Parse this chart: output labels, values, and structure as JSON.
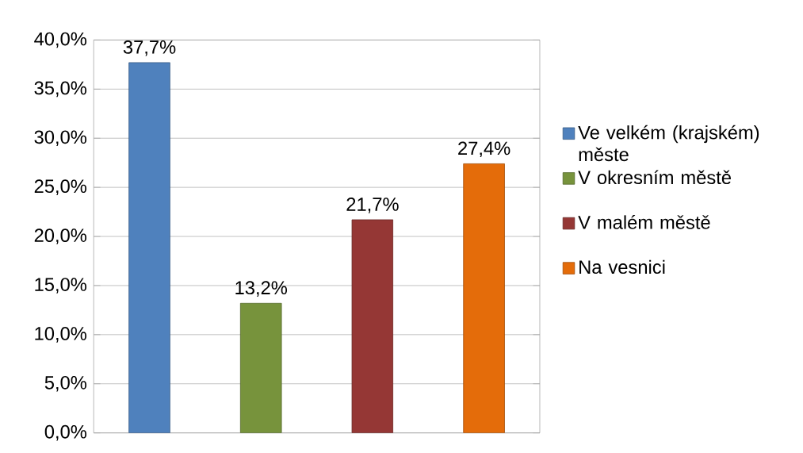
{
  "chart_data": {
    "type": "bar",
    "categories": [
      null,
      null,
      null,
      null
    ],
    "series": [
      {
        "name": "Ve velkém (krajském) měste",
        "color": "#4f81bd",
        "values": [
          37.7,
          null,
          null,
          null
        ],
        "value_labels": [
          "37,7%",
          null,
          null,
          null
        ]
      },
      {
        "name": "V okresním městě",
        "color": "#77933c",
        "values": [
          null,
          13.2,
          null,
          null
        ],
        "value_labels": [
          null,
          "13,2%",
          null,
          null
        ]
      },
      {
        "name": "V malém městě",
        "color": "#953735",
        "values": [
          null,
          null,
          21.7,
          null
        ],
        "value_labels": [
          null,
          null,
          "21,7%",
          null
        ]
      },
      {
        "name": "Na vesnici",
        "color": "#e46c0a",
        "values": [
          null,
          null,
          null,
          27.4
        ],
        "value_labels": [
          null,
          null,
          null,
          "27,4%"
        ]
      }
    ],
    "ylim": [
      0,
      40
    ],
    "yticks": [
      {
        "value": 0,
        "label": "0,0%"
      },
      {
        "value": 5,
        "label": "5,0%"
      },
      {
        "value": 10,
        "label": "10,0%"
      },
      {
        "value": 15,
        "label": "15,0%"
      },
      {
        "value": 20,
        "label": "20,0%"
      },
      {
        "value": 25,
        "label": "25,0%"
      },
      {
        "value": 30,
        "label": "30,0%"
      },
      {
        "value": 35,
        "label": "35,0%"
      },
      {
        "value": 40,
        "label": "40,0%"
      }
    ],
    "grid": "y",
    "legend": "right"
  }
}
